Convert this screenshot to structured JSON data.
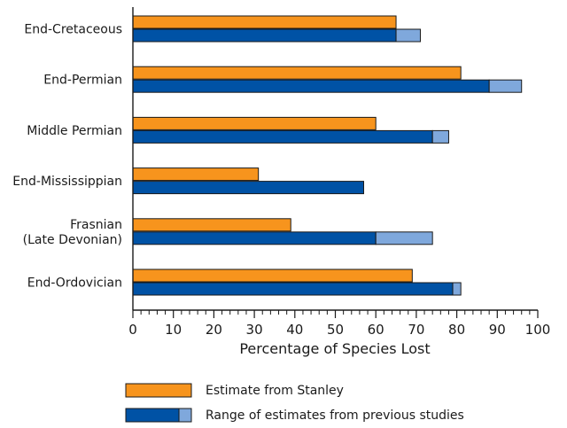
{
  "chart_data": {
    "type": "bar",
    "orientation": "horizontal",
    "categories": [
      [
        "End-Cretaceous"
      ],
      [
        "End-Permian"
      ],
      [
        "Middle Permian"
      ],
      [
        "End-Mississippian"
      ],
      [
        "Frasnian",
        "(Late Devonian)"
      ],
      [
        "End-Ordovician"
      ]
    ],
    "series": [
      {
        "name": "Estimate from Stanley",
        "color": "#f7941d",
        "values": [
          65,
          81,
          60,
          31,
          39,
          69
        ]
      },
      {
        "name": "Range of estimates from previous studies",
        "color": "#0052a5",
        "range_color": "#7fa8dc",
        "ranges": [
          [
            65,
            71
          ],
          [
            88,
            96
          ],
          [
            74,
            78
          ],
          [
            57,
            57
          ],
          [
            60,
            74
          ],
          [
            79,
            81
          ]
        ]
      }
    ],
    "xlabel": "Percentage of Species Lost",
    "xlim": [
      0,
      100
    ],
    "xticks": [
      "0",
      "10",
      "20",
      "30",
      "40",
      "50",
      "60",
      "70",
      "80",
      "90",
      "100"
    ],
    "minor_ticks_per_major": 5,
    "grid": false,
    "legend_position": "bottom"
  }
}
